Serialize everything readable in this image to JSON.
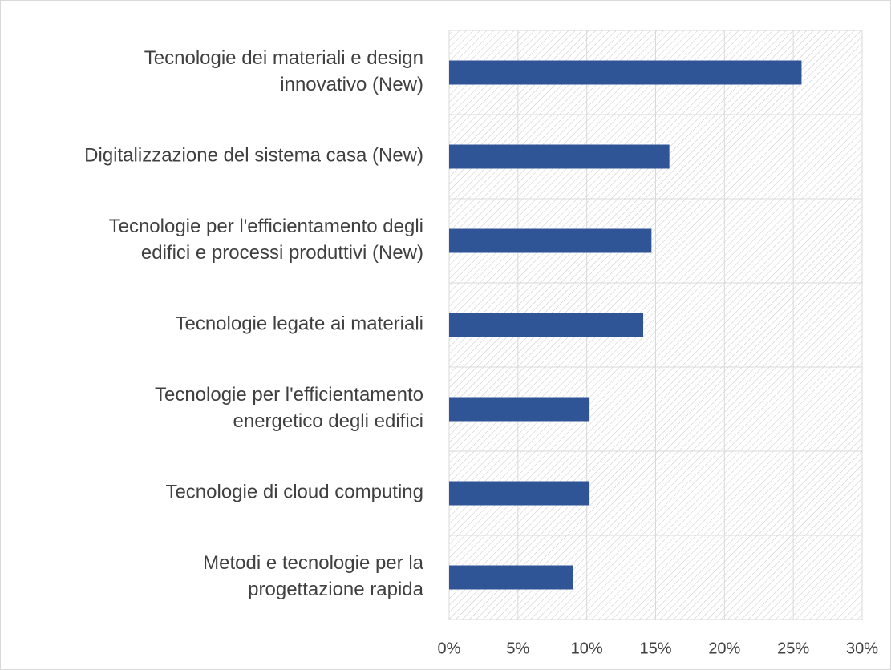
{
  "chart_data": {
    "type": "bar",
    "orientation": "horizontal",
    "categories": [
      "Tecnologie dei materiali e design\ninnovativo (New)",
      "Digitalizzazione del sistema casa (New)",
      "Tecnologie per l'efficientamento degli\nedifici e processi produttivi (New)",
      "Tecnologie legate ai materiali",
      "Tecnologie per l'efficientamento\nenergetico degli edifici",
      "Tecnologie di cloud computing",
      "Metodi e tecnologie per la\nprogettazione rapida"
    ],
    "values": [
      25.6,
      16.0,
      14.7,
      14.1,
      10.2,
      10.2,
      9.0
    ],
    "color": "#2f5597",
    "xlim": [
      0,
      30
    ],
    "xticks": [
      {
        "value": 0,
        "label": "0%"
      },
      {
        "value": 5,
        "label": "5%"
      },
      {
        "value": 10,
        "label": "10%"
      },
      {
        "value": 15,
        "label": "15%"
      },
      {
        "value": 20,
        "label": "20%"
      },
      {
        "value": 25,
        "label": "25%"
      },
      {
        "value": 30,
        "label": "30%"
      }
    ],
    "grid": true
  }
}
